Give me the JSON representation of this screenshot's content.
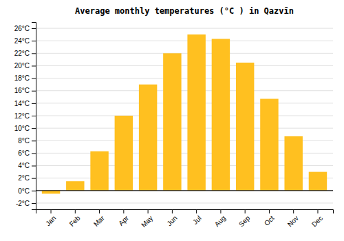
{
  "chart_data": {
    "type": "bar",
    "title": "Average monthly temperatures (°C ) in Qazvīn",
    "categories": [
      "Jan",
      "Feb",
      "Mar",
      "Apr",
      "May",
      "Jun",
      "Jul",
      "Aug",
      "Sep",
      "Oct",
      "Nov",
      "Dec"
    ],
    "values": [
      -0.5,
      1.5,
      6.3,
      12.0,
      17.0,
      22.0,
      25.0,
      24.3,
      20.5,
      14.7,
      8.7,
      3.0
    ],
    "color": "#FFC020",
    "ylim": [
      -3,
      27
    ],
    "yticks": [
      {
        "value": -2,
        "label": "-2°C"
      },
      {
        "value": 0,
        "label": "0°C"
      },
      {
        "value": 2,
        "label": "2°C"
      },
      {
        "value": 4,
        "label": "4°C"
      },
      {
        "value": 6,
        "label": "6°C"
      },
      {
        "value": 8,
        "label": "8°C"
      },
      {
        "value": 10,
        "label": "10°C"
      },
      {
        "value": 12,
        "label": "12°C"
      },
      {
        "value": 14,
        "label": "14°C"
      },
      {
        "value": 16,
        "label": "16°C"
      },
      {
        "value": 18,
        "label": "18°C"
      },
      {
        "value": 20,
        "label": "20°C"
      },
      {
        "value": 22,
        "label": "22°C"
      },
      {
        "value": 24,
        "label": "24°C"
      },
      {
        "value": 26,
        "label": "26°C"
      }
    ],
    "grid": true
  }
}
